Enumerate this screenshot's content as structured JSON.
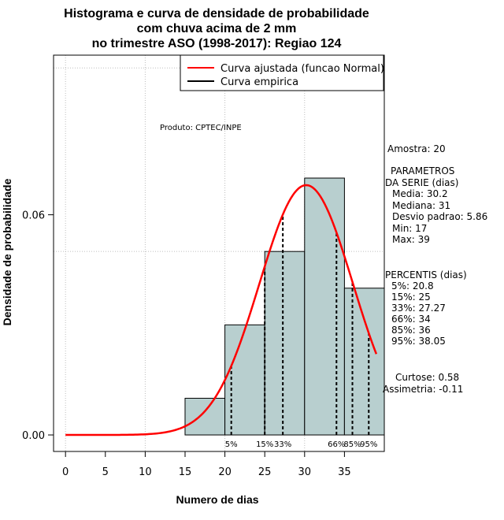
{
  "chart_data": {
    "type": "bar",
    "title": [
      "Histograma e curva de densidade de probabilidade",
      "com chuva acima de 2 mm",
      "no trimestre ASO (1998-2017): Regiao 124"
    ],
    "xlabel": "Numero de dias",
    "ylabel": "Densidade de probabilidade",
    "xlim": [
      -1.5,
      40
    ],
    "ylim": [
      -0.0045,
      0.1035
    ],
    "x_ticks": [
      0,
      5,
      10,
      15,
      20,
      25,
      30,
      35
    ],
    "x_tick_labels": [
      "0",
      "5",
      "10",
      "15",
      "20",
      "25",
      "30",
      "35"
    ],
    "y_ticks": [
      0.0,
      0.06
    ],
    "y_tick_labels": [
      "0.00",
      "0.06"
    ],
    "grid_x": [
      0,
      10,
      20,
      30
    ],
    "grid_y": [
      0.05,
      0.1
    ],
    "bins": [
      {
        "x0": 15,
        "x1": 20,
        "density": 0.01
      },
      {
        "x0": 20,
        "x1": 25,
        "density": 0.03
      },
      {
        "x0": 25,
        "x1": 30,
        "density": 0.05
      },
      {
        "x0": 30,
        "x1": 35,
        "density": 0.07
      },
      {
        "x0": 35,
        "x1": 40,
        "density": 0.04
      }
    ],
    "series": [
      {
        "name": "Curva ajustada (funcao Normal)",
        "color": "#ff0000",
        "mean": 30.2,
        "sd": 5.86,
        "x_range": [
          0,
          39
        ]
      },
      {
        "name": "Curva empirica",
        "color": "#000000"
      }
    ],
    "percentile_lines": [
      {
        "label": "5%",
        "x": 20.8
      },
      {
        "label": "15%",
        "x": 25
      },
      {
        "label": "33%",
        "x": 27.27
      },
      {
        "label": "66%",
        "x": 34
      },
      {
        "label": "85%",
        "x": 36
      },
      {
        "label": "95%",
        "x": 38.05
      }
    ],
    "annotation": "Produto: CPTEC/INPE",
    "legend_position": "top-right",
    "bar_color": "#b8cfcf"
  },
  "stats": {
    "amostra": "Amostra: 20",
    "param_title_1": "PARAMETROS",
    "param_title_2": "DA SERIE (dias)",
    "media": "Media: 30.2",
    "mediana": "Mediana: 31",
    "desvio": "Desvio padrao: 5.86",
    "min": "Min: 17",
    "max": "Max: 39",
    "perc_title": "PERCENTIS (dias)",
    "p5": "5%: 20.8",
    "p15": "15%: 25",
    "p33": "33%: 27.27",
    "p66": "66%: 34",
    "p85": "85%: 36",
    "p95": "95%: 38.05",
    "curtose": "Curtose: 0.58",
    "assimetria": "Assimetria: -0.11"
  }
}
